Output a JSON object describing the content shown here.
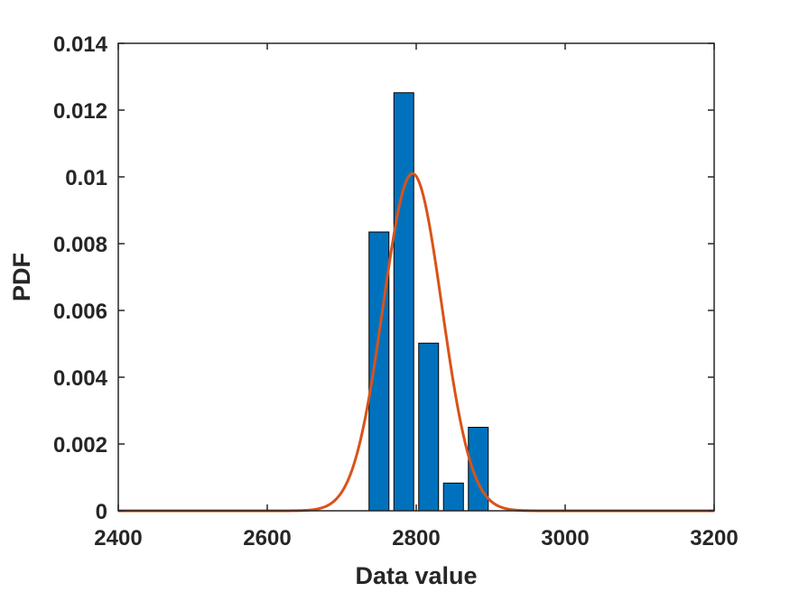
{
  "chart_data": {
    "type": "bar",
    "title": "",
    "xlabel": "Data value",
    "ylabel": "PDF",
    "xlim": [
      2400,
      3200
    ],
    "ylim": [
      0,
      0.014
    ],
    "xticks": [
      2400,
      2600,
      2800,
      3000,
      3200
    ],
    "xtick_labels": [
      "2400",
      "2600",
      "2800",
      "3000",
      "3200"
    ],
    "yticks": [
      0,
      0.002,
      0.004,
      0.006,
      0.008,
      0.01,
      0.012,
      0.014
    ],
    "ytick_labels": [
      "0",
      "0.002",
      "0.004",
      "0.006",
      "0.008",
      "0.01",
      "0.012",
      "0.014"
    ],
    "grid": false,
    "histogram": {
      "bin_edges": [
        2733.3,
        2766.7,
        2800.0,
        2833.3,
        2866.7,
        2900.0
      ],
      "values": [
        0.00835,
        0.01252,
        0.00502,
        0.00083,
        0.0025
      ],
      "color": "#0072BD"
    },
    "fit_curve": {
      "type": "normal_pdf",
      "mean": 2795,
      "sd": 39.5,
      "color": "#D95319"
    }
  }
}
